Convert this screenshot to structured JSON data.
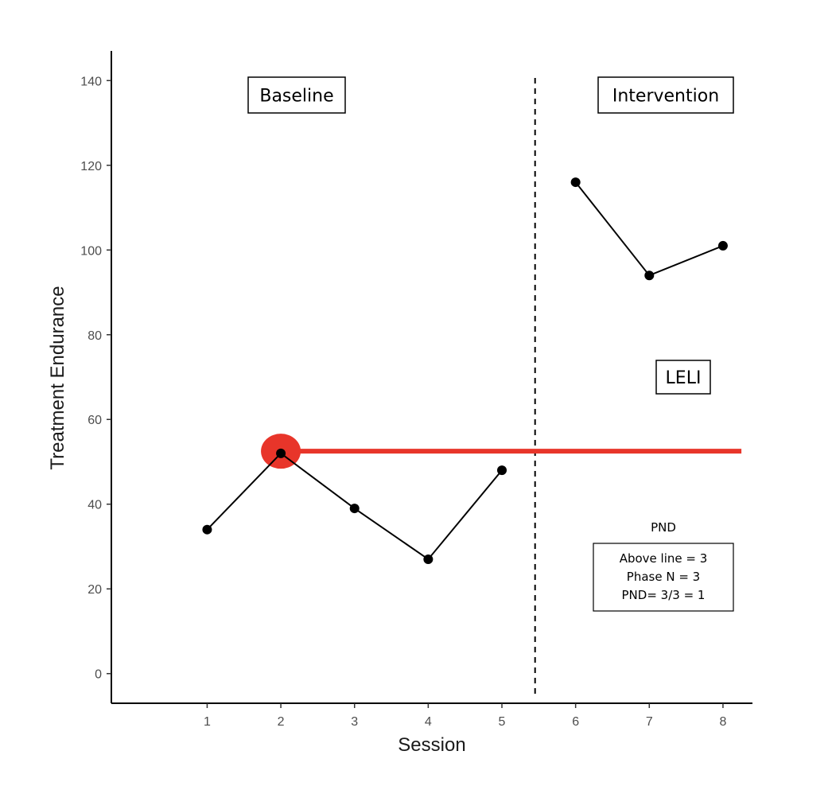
{
  "chart_data": {
    "type": "line",
    "xlabel": "Session",
    "ylabel": "Treatment Endurance",
    "xlim": [
      -0.3,
      8.4
    ],
    "ylim": [
      -7,
      147
    ],
    "x_ticks": [
      1,
      2,
      3,
      4,
      5,
      6,
      7,
      8
    ],
    "y_ticks": [
      0,
      20,
      40,
      60,
      80,
      100,
      120,
      140
    ],
    "grid": false,
    "legend": "none",
    "series": [
      {
        "phase": "Baseline",
        "x": [
          1,
          2,
          3,
          4,
          5
        ],
        "values": [
          34,
          52,
          39,
          27,
          48
        ]
      },
      {
        "phase": "Intervention",
        "x": [
          6,
          7,
          8
        ],
        "values": [
          116,
          94,
          101
        ]
      }
    ],
    "phase_line_x": 5.45,
    "reference_line": {
      "y": 52.5,
      "x_start": 2,
      "x_end": 8.25,
      "marker_x": 2,
      "color": "#e8352a"
    },
    "annotations": {
      "baseline_label": "Baseline",
      "intervention_label": "Intervention",
      "leli_label": "LELI",
      "pnd_title": "PND",
      "pnd_lines": [
        "Above line = 3",
        "Phase N = 3",
        "PND= 3/3 = 1"
      ]
    },
    "colors": {
      "data": "#000000",
      "reference": "#e8352a",
      "axis": "#000000"
    }
  }
}
